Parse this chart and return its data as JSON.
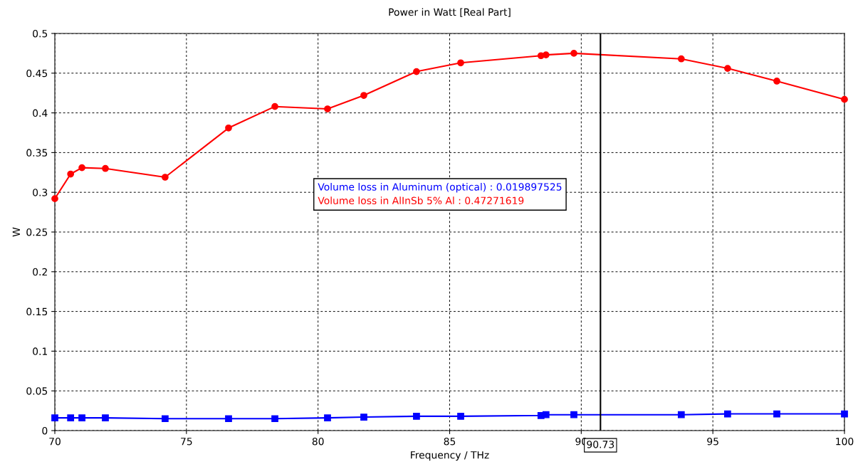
{
  "chart_data": {
    "type": "line",
    "title": "Power in Watt [Real Part]",
    "xlabel": "Frequency / THz",
    "ylabel": "W",
    "x": [
      70,
      70.6,
      71.03,
      71.92,
      74.19,
      76.6,
      78.36,
      80.36,
      81.74,
      83.74,
      85.42,
      88.47,
      88.66,
      89.72,
      93.8,
      95.56,
      97.43,
      100
    ],
    "series": [
      {
        "color": "#0000ff",
        "marker": "square",
        "values": [
          0.016,
          0.016,
          0.016,
          0.016,
          0.015,
          0.015,
          0.015,
          0.016,
          0.017,
          0.018,
          0.018,
          0.019,
          0.02,
          0.02,
          0.02,
          0.021,
          0.021,
          0.021
        ]
      },
      {
        "color": "#ff0000",
        "marker": "circle",
        "values": [
          0.292,
          0.323,
          0.331,
          0.33,
          0.319,
          0.381,
          0.408,
          0.405,
          0.422,
          0.452,
          0.463,
          0.472,
          0.473,
          0.475,
          0.468,
          0.456,
          0.44,
          0.417
        ]
      }
    ],
    "xlim": [
      70,
      100
    ],
    "xticks": [
      70,
      75,
      80,
      85,
      90,
      95,
      100
    ],
    "ylim": [
      0,
      0.5
    ],
    "yticks": [
      0,
      0.05,
      0.1,
      0.15,
      0.2,
      0.25,
      0.3,
      0.35,
      0.4,
      0.45,
      0.5
    ],
    "grid": true,
    "ref_lines": [
      {
        "axis": "x",
        "value": 90.73,
        "label": "90.73",
        "color": "#000000"
      }
    ],
    "annotations": [
      "Volume loss in Aluminum (optical) : 0.019897525",
      "Volume loss in AlInSb 5% Al : 0.47271619"
    ]
  }
}
